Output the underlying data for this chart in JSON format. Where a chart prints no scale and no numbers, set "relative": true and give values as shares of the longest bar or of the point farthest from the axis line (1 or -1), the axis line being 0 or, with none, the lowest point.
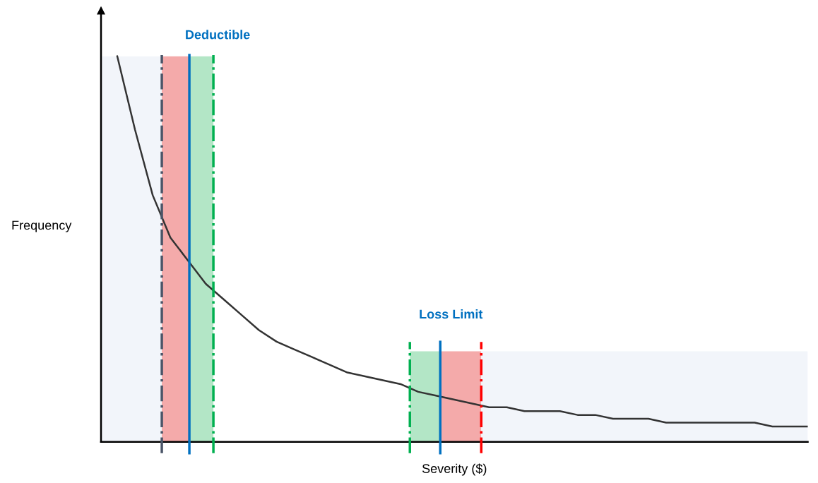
{
  "chart_data": {
    "type": "line",
    "relative": true,
    "xlabel": "Severity ($)",
    "ylabel": "Frequency",
    "categories": [
      null,
      null,
      null,
      null,
      null,
      null,
      null,
      null,
      null,
      null,
      null,
      null,
      null,
      null,
      null,
      null,
      null,
      null,
      null,
      null,
      null,
      null,
      null,
      null,
      null,
      null,
      null,
      null,
      null,
      null,
      null,
      null,
      null,
      null,
      null,
      null,
      null,
      null,
      null,
      null
    ],
    "series": [
      {
        "color": "#333333",
        "values": [
          1.0,
          0.81,
          0.64,
          0.53,
          0.47,
          0.41,
          0.37,
          0.33,
          0.29,
          0.26,
          0.24,
          0.22,
          0.2,
          0.18,
          0.17,
          0.16,
          0.15,
          0.13,
          0.12,
          0.11,
          0.1,
          0.09,
          0.09,
          0.08,
          0.08,
          0.08,
          0.07,
          0.07,
          0.06,
          0.06,
          0.06,
          0.05,
          0.05,
          0.05,
          0.05,
          0.05,
          0.05,
          0.04,
          0.04,
          0.04
        ]
      }
    ],
    "annotations": [
      "Deductible",
      "Loss Limit"
    ],
    "tick_labels": false
  }
}
